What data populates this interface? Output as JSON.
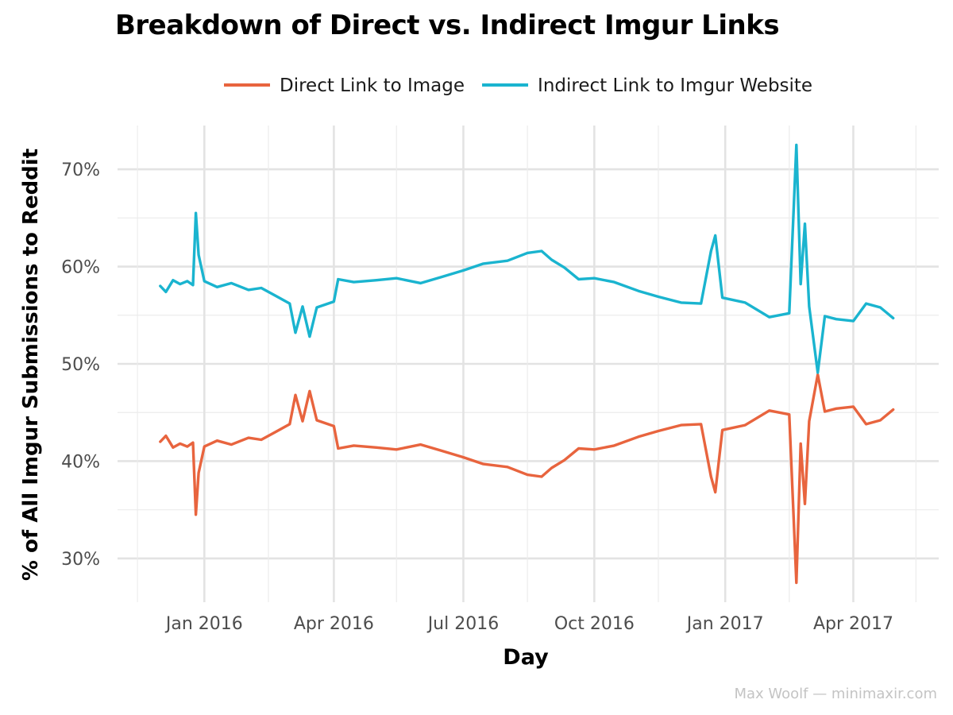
{
  "chart_data": {
    "type": "line",
    "title": "Breakdown of Direct vs. Indirect Imgur Links",
    "xlabel": "Day",
    "ylabel": "% of All Imgur Submissions to Reddit",
    "x_ticks": [
      "Jan 2016",
      "Apr 2016",
      "Jul 2016",
      "Oct 2016",
      "Jan 2017",
      "Apr 2017"
    ],
    "y_ticks": [
      "30%",
      "40%",
      "50%",
      "60%",
      "70%"
    ],
    "ylim": [
      25.5,
      74.5
    ],
    "xlim": [
      "2015-11-01",
      "2017-05-31"
    ],
    "grid": true,
    "legend_position": "top",
    "credit": "Max Woolf — minimaxir.com",
    "series": [
      {
        "name": "Direct Link to Image",
        "color": "#E8643E",
        "points": [
          [
            "2015-12-01",
            42.0
          ],
          [
            "2015-12-05",
            42.6
          ],
          [
            "2015-12-10",
            41.4
          ],
          [
            "2015-12-15",
            41.8
          ],
          [
            "2015-12-20",
            41.5
          ],
          [
            "2015-12-24",
            41.9
          ],
          [
            "2015-12-26",
            34.5
          ],
          [
            "2015-12-28",
            38.8
          ],
          [
            "2016-01-01",
            41.5
          ],
          [
            "2016-01-10",
            42.1
          ],
          [
            "2016-01-20",
            41.7
          ],
          [
            "2016-02-01",
            42.4
          ],
          [
            "2016-02-10",
            42.2
          ],
          [
            "2016-02-20",
            43.0
          ],
          [
            "2016-03-01",
            43.8
          ],
          [
            "2016-03-05",
            46.8
          ],
          [
            "2016-03-10",
            44.1
          ],
          [
            "2016-03-15",
            47.2
          ],
          [
            "2016-03-20",
            44.2
          ],
          [
            "2016-04-01",
            43.6
          ],
          [
            "2016-04-04",
            41.3
          ],
          [
            "2016-04-15",
            41.6
          ],
          [
            "2016-05-01",
            41.4
          ],
          [
            "2016-05-15",
            41.2
          ],
          [
            "2016-06-01",
            41.7
          ],
          [
            "2016-06-15",
            41.1
          ],
          [
            "2016-07-01",
            40.4
          ],
          [
            "2016-07-15",
            39.7
          ],
          [
            "2016-08-01",
            39.4
          ],
          [
            "2016-08-15",
            38.6
          ],
          [
            "2016-08-25",
            38.4
          ],
          [
            "2016-09-01",
            39.3
          ],
          [
            "2016-09-10",
            40.1
          ],
          [
            "2016-09-20",
            41.3
          ],
          [
            "2016-10-01",
            41.2
          ],
          [
            "2016-10-15",
            41.6
          ],
          [
            "2016-11-01",
            42.5
          ],
          [
            "2016-11-15",
            43.1
          ],
          [
            "2016-12-01",
            43.7
          ],
          [
            "2016-12-15",
            43.8
          ],
          [
            "2016-12-22",
            38.4
          ],
          [
            "2016-12-25",
            36.8
          ],
          [
            "2016-12-30",
            43.2
          ],
          [
            "2017-01-15",
            43.7
          ],
          [
            "2017-02-01",
            45.2
          ],
          [
            "2017-02-15",
            44.8
          ],
          [
            "2017-02-20",
            27.5
          ],
          [
            "2017-02-23",
            41.8
          ],
          [
            "2017-02-26",
            35.6
          ],
          [
            "2017-03-01",
            44.1
          ],
          [
            "2017-03-07",
            48.9
          ],
          [
            "2017-03-12",
            45.1
          ],
          [
            "2017-03-20",
            45.4
          ],
          [
            "2017-04-01",
            45.6
          ],
          [
            "2017-04-10",
            43.8
          ],
          [
            "2017-04-20",
            44.2
          ],
          [
            "2017-04-29",
            45.3
          ]
        ]
      },
      {
        "name": "Indirect Link to Imgur Website",
        "color": "#1AB4CF",
        "points": [
          [
            "2015-12-01",
            58.0
          ],
          [
            "2015-12-05",
            57.4
          ],
          [
            "2015-12-10",
            58.6
          ],
          [
            "2015-12-15",
            58.2
          ],
          [
            "2015-12-20",
            58.5
          ],
          [
            "2015-12-24",
            58.1
          ],
          [
            "2015-12-26",
            65.5
          ],
          [
            "2015-12-28",
            61.2
          ],
          [
            "2016-01-01",
            58.5
          ],
          [
            "2016-01-10",
            57.9
          ],
          [
            "2016-01-20",
            58.3
          ],
          [
            "2016-02-01",
            57.6
          ],
          [
            "2016-02-10",
            57.8
          ],
          [
            "2016-02-20",
            57.0
          ],
          [
            "2016-03-01",
            56.2
          ],
          [
            "2016-03-05",
            53.2
          ],
          [
            "2016-03-10",
            55.9
          ],
          [
            "2016-03-15",
            52.8
          ],
          [
            "2016-03-20",
            55.8
          ],
          [
            "2016-04-01",
            56.4
          ],
          [
            "2016-04-04",
            58.7
          ],
          [
            "2016-04-15",
            58.4
          ],
          [
            "2016-05-01",
            58.6
          ],
          [
            "2016-05-15",
            58.8
          ],
          [
            "2016-06-01",
            58.3
          ],
          [
            "2016-06-15",
            58.9
          ],
          [
            "2016-07-01",
            59.6
          ],
          [
            "2016-07-15",
            60.3
          ],
          [
            "2016-08-01",
            60.6
          ],
          [
            "2016-08-15",
            61.4
          ],
          [
            "2016-08-25",
            61.6
          ],
          [
            "2016-09-01",
            60.7
          ],
          [
            "2016-09-10",
            59.9
          ],
          [
            "2016-09-20",
            58.7
          ],
          [
            "2016-10-01",
            58.8
          ],
          [
            "2016-10-15",
            58.4
          ],
          [
            "2016-11-01",
            57.5
          ],
          [
            "2016-11-15",
            56.9
          ],
          [
            "2016-12-01",
            56.3
          ],
          [
            "2016-12-15",
            56.2
          ],
          [
            "2016-12-22",
            61.6
          ],
          [
            "2016-12-25",
            63.2
          ],
          [
            "2016-12-30",
            56.8
          ],
          [
            "2017-01-15",
            56.3
          ],
          [
            "2017-02-01",
            54.8
          ],
          [
            "2017-02-15",
            55.2
          ],
          [
            "2017-02-20",
            72.5
          ],
          [
            "2017-02-23",
            58.2
          ],
          [
            "2017-02-26",
            64.4
          ],
          [
            "2017-03-01",
            55.9
          ],
          [
            "2017-03-07",
            49.1
          ],
          [
            "2017-03-12",
            54.9
          ],
          [
            "2017-03-20",
            54.6
          ],
          [
            "2017-04-01",
            54.4
          ],
          [
            "2017-04-10",
            56.2
          ],
          [
            "2017-04-20",
            55.8
          ],
          [
            "2017-04-29",
            54.7
          ]
        ]
      }
    ]
  }
}
